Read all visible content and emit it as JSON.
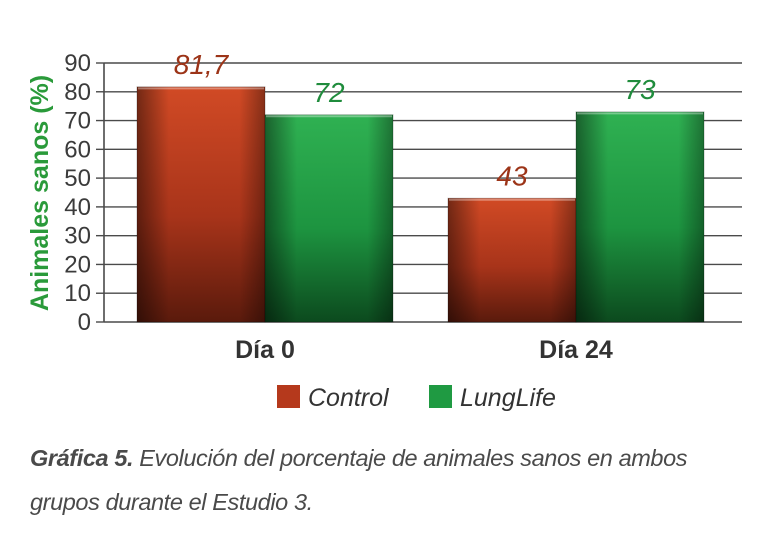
{
  "chart_data": {
    "type": "bar",
    "categories": [
      "Día 0",
      "Día 24"
    ],
    "series": [
      {
        "name": "Control",
        "values": [
          81.7,
          43
        ],
        "labels": [
          "81,7",
          "43"
        ],
        "color": "#b5391c",
        "label_color": "#9c3418"
      },
      {
        "name": "LungLife",
        "values": [
          72,
          73
        ],
        "labels": [
          "72",
          "73"
        ],
        "color": "#1f9a42",
        "label_color": "#1f8c3c"
      }
    ],
    "ylabel": "Animales sanos (%)",
    "ylabel_color": "#2a9a3a",
    "ylim": [
      0,
      90
    ],
    "yticks": [
      0,
      10,
      20,
      30,
      40,
      50,
      60,
      70,
      80,
      90
    ],
    "grid": true,
    "legend_position": "bottom"
  },
  "caption": {
    "label": "Gráfica 5.",
    "text": " Evolución del porcentaje de animales sanos en ambos grupos durante el Estudio 3."
  }
}
